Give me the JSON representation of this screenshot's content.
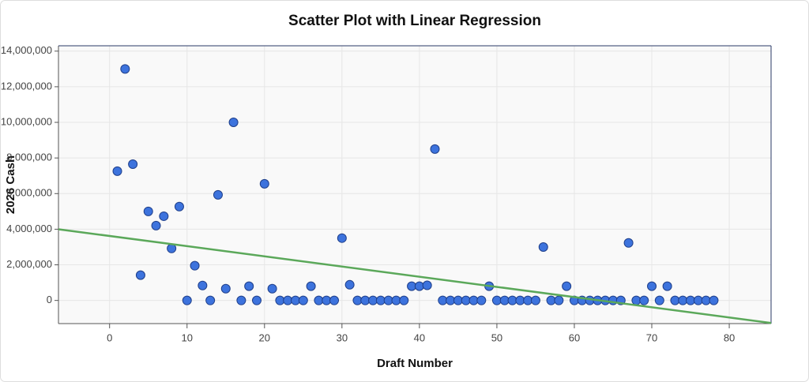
{
  "chart_data": {
    "type": "scatter",
    "title": "Scatter Plot with Linear Regression",
    "xlabel": "Draft Number",
    "ylabel": "2026 Cash",
    "x": [
      1,
      2,
      3,
      4,
      5,
      6,
      7,
      8,
      9,
      10,
      11,
      12,
      13,
      14,
      15,
      16,
      17,
      18,
      19,
      20,
      21,
      22,
      23,
      24,
      25,
      26,
      27,
      28,
      29,
      30,
      31,
      32,
      33,
      34,
      35,
      36,
      37,
      38,
      39,
      40,
      41,
      42,
      43,
      44,
      45,
      46,
      47,
      48,
      49,
      50,
      51,
      52,
      53,
      54,
      55,
      56,
      57,
      58,
      59,
      60,
      61,
      62,
      63,
      64,
      65,
      66,
      67,
      68,
      69,
      70,
      71,
      72,
      73,
      74,
      75,
      76,
      77,
      78
    ],
    "values": [
      7260000,
      13000000,
      7650000,
      1420000,
      5000000,
      4200000,
      4730000,
      2920000,
      5270000,
      0,
      1950000,
      840000,
      0,
      5930000,
      660000,
      10000000,
      0,
      800000,
      0,
      6550000,
      660000,
      0,
      0,
      0,
      0,
      800000,
      0,
      0,
      0,
      3500000,
      880000,
      0,
      0,
      0,
      0,
      0,
      0,
      0,
      800000,
      800000,
      850000,
      8500000,
      0,
      0,
      0,
      0,
      0,
      0,
      800000,
      0,
      0,
      0,
      0,
      0,
      0,
      3000000,
      0,
      0,
      800000,
      0,
      0,
      0,
      0,
      0,
      0,
      0,
      3230000,
      0,
      0,
      800000,
      0,
      800000,
      0,
      0,
      0,
      0,
      0,
      0
    ],
    "color": "#3d73dd",
    "regression": {
      "slope": -57200,
      "intercept": 3620000,
      "color": "#5ba85a"
    },
    "xlim": [
      -6.6,
      85.4
    ],
    "ylim": [
      -1300000,
      14300000
    ],
    "xticks": [
      0,
      10,
      20,
      30,
      40,
      50,
      60,
      70,
      80
    ],
    "yticks": [
      0,
      {
        "value": 2000000,
        "label": "2,000,000"
      },
      {
        "value": 4000000,
        "label": "4,000,000"
      },
      {
        "value": 6000000,
        "label": "6,000,000"
      },
      {
        "value": 8000000,
        "label": "8,000,000"
      },
      {
        "value": 10000000,
        "label": "10,000,000"
      },
      {
        "value": 12000000,
        "label": "12,000,000"
      },
      {
        "value": 14000000,
        "label": "14,000,000"
      }
    ],
    "grid": true
  }
}
